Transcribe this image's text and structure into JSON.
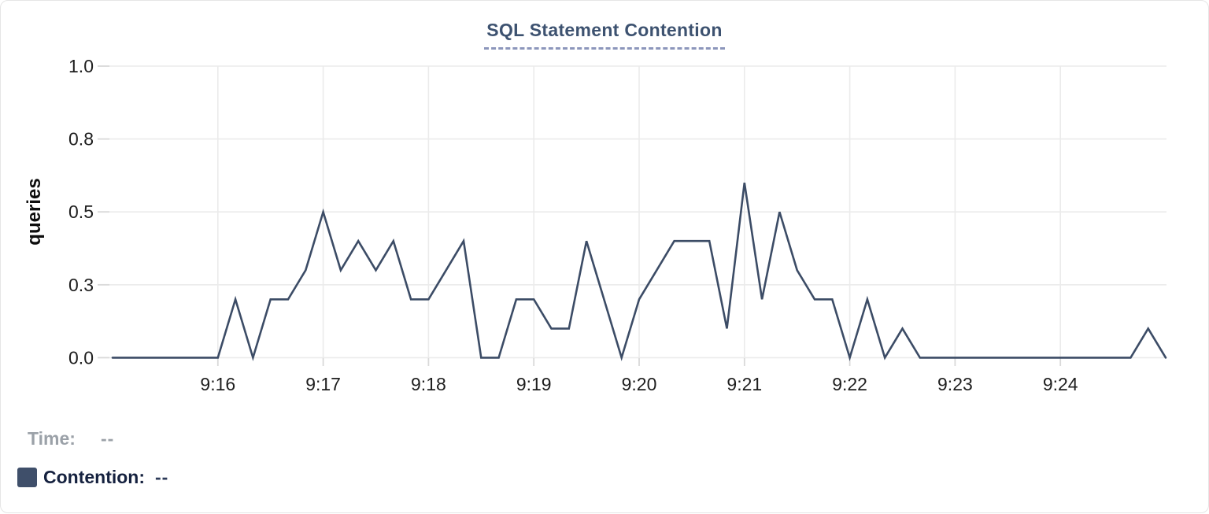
{
  "chart": {
    "title": "SQL Statement Contention",
    "y_axis_title": "queries"
  },
  "chart_data": {
    "type": "line",
    "title": "SQL Statement Contention",
    "xlabel": "",
    "ylabel": "queries",
    "ylim": [
      0,
      1
    ],
    "grid": true,
    "legend_position": "bottom-left",
    "x_range": {
      "start": "9:15:00",
      "end": "9:25:00",
      "point_interval_seconds": 10
    },
    "x_tick_labels": [
      "9:16",
      "9:17",
      "9:18",
      "9:19",
      "9:20",
      "9:21",
      "9:22",
      "9:23",
      "9:24"
    ],
    "y_ticks": [
      {
        "value": 0,
        "label": "0.0"
      },
      {
        "value": 0.25,
        "label": "0.3"
      },
      {
        "value": 0.5,
        "label": "0.5"
      },
      {
        "value": 0.75,
        "label": "0.8"
      },
      {
        "value": 1,
        "label": "1.0"
      }
    ],
    "series": [
      {
        "name": "Contention",
        "unit": "queries",
        "color": "#3c4c66",
        "values": [
          0,
          0,
          0,
          0,
          0,
          0,
          0,
          0.2,
          0,
          0.2,
          0.2,
          0.3,
          0.5,
          0.3,
          0.4,
          0.3,
          0.4,
          0.2,
          0.2,
          0.3,
          0.4,
          0,
          0,
          0.2,
          0.2,
          0.1,
          0.1,
          0.4,
          0.2,
          0,
          0.2,
          0.3,
          0.4,
          0.4,
          0.4,
          0.1,
          0.6,
          0.2,
          0.5,
          0.3,
          0.2,
          0.2,
          0,
          0.2,
          0,
          0.1,
          0,
          0,
          0,
          0,
          0,
          0,
          0,
          0,
          0,
          0,
          0,
          0,
          0,
          0.1,
          0
        ]
      }
    ]
  },
  "legend": {
    "time_label": "Time:",
    "time_value": "--",
    "contention_label": "Contention:",
    "contention_value": "--",
    "swatch_color": "#3f4f6a"
  },
  "colors": {
    "line": "#3c4c66",
    "grid": "#ebebeb",
    "tick": "#d9d9d9",
    "axis_text": "#1e1e1e",
    "y_axis_title_text": "#0d0d0d",
    "title_text": "#3d5270",
    "title_underline": "#8c96bb",
    "card_border": "#e5e5e5"
  }
}
